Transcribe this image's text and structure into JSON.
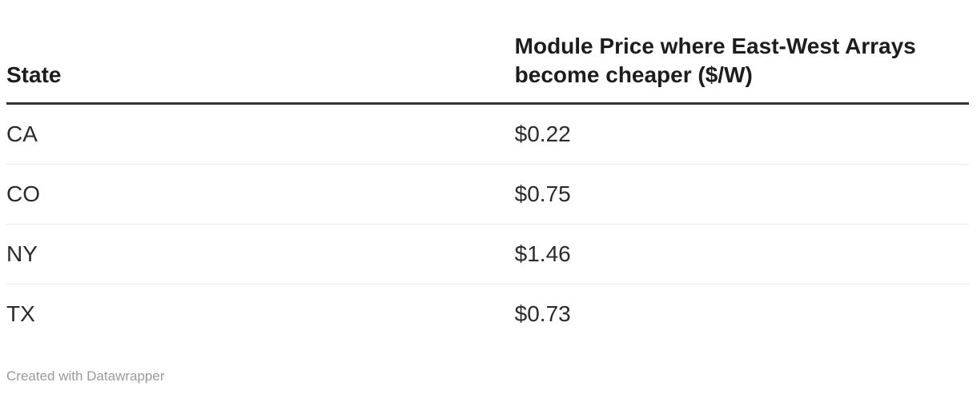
{
  "chart_data": {
    "type": "table",
    "columns": [
      "State",
      "Module Price where East-West Arrays become cheaper ($/W)"
    ],
    "rows": [
      {
        "state": "CA",
        "price": "$0.22"
      },
      {
        "state": "CO",
        "price": "$0.75"
      },
      {
        "state": "NY",
        "price": "$1.46"
      },
      {
        "state": "TX",
        "price": "$0.73"
      }
    ],
    "values_numeric": [
      0.22,
      0.75,
      1.46,
      0.73
    ],
    "title": "",
    "layout_hints": {
      "header_rule": "thick-dark",
      "row_dividers": "light-gray",
      "value_column_alignment": "left"
    }
  },
  "colors": {
    "header_text": "#1d1d1d",
    "body_text": "#2b2b2b",
    "header_rule": "#333333",
    "row_divider": "#ebebeb",
    "footer_text": "#9a9a9a",
    "background": "#ffffff"
  },
  "footer": {
    "credit": "Created with Datawrapper"
  }
}
